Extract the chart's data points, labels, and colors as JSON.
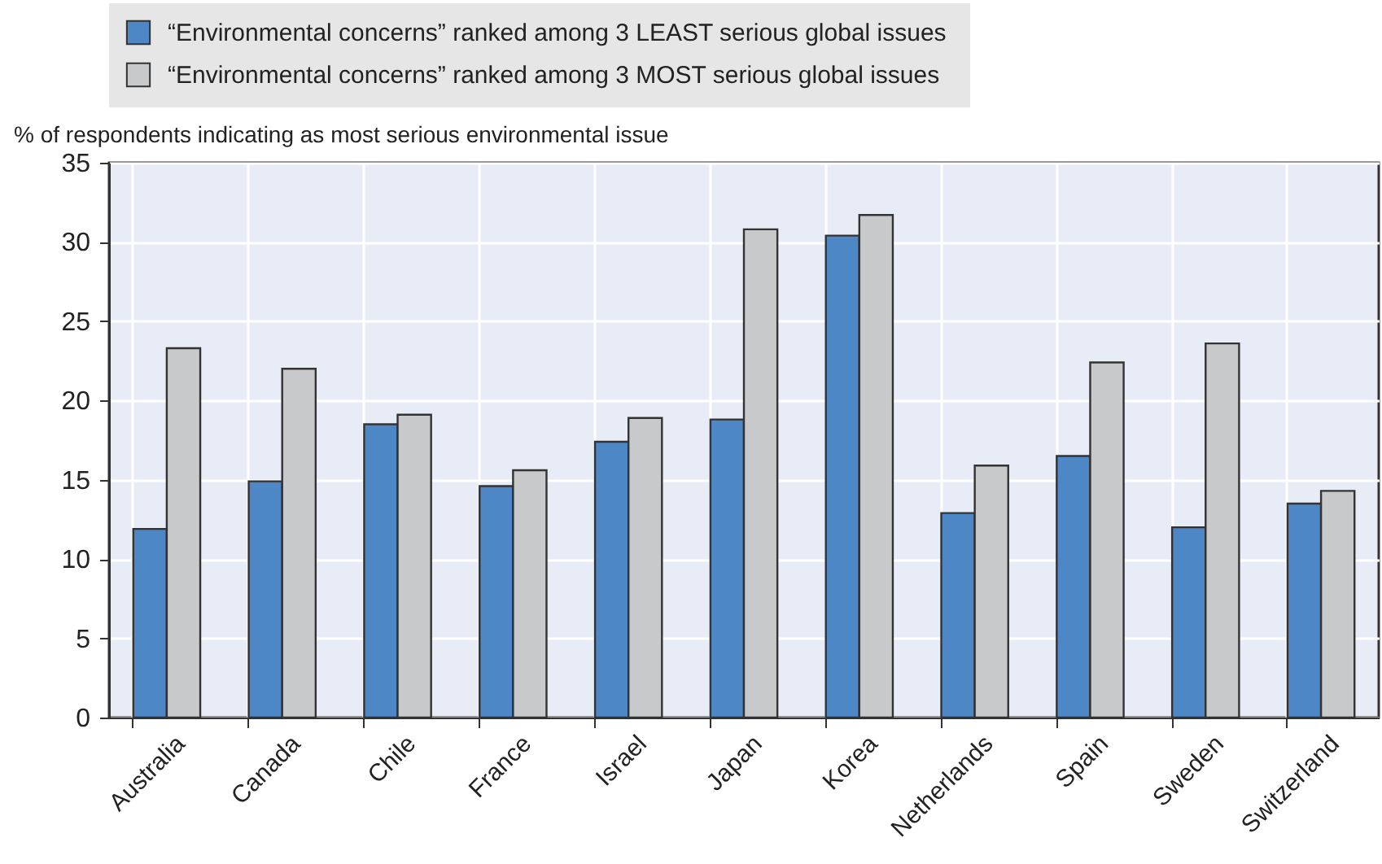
{
  "chart_data": {
    "type": "bar",
    "ylabel": "% of respondents indicating as most serious environmental issue",
    "categories": [
      "Australia",
      "Canada",
      "Chile",
      "France",
      "Israel",
      "Japan",
      "Korea",
      "Netherlands",
      "Spain",
      "Sweden",
      "Switzerland"
    ],
    "series": [
      {
        "name": "“Environmental concerns” ranked among  3 LEAST serious global issues",
        "color": "#4e87c5",
        "values": [
          11.9,
          14.9,
          18.5,
          14.6,
          17.4,
          18.8,
          30.4,
          12.9,
          16.5,
          12.0,
          13.5
        ]
      },
      {
        "name": "“Environmental concerns” ranked among 3 MOST serious global issues",
        "color": "#c8c9cb",
        "values": [
          23.3,
          22.0,
          19.1,
          15.6,
          18.9,
          30.8,
          31.7,
          15.9,
          22.4,
          23.6,
          14.3
        ]
      }
    ],
    "ylim": [
      0,
      35
    ],
    "yticks": [
      0,
      5,
      10,
      15,
      20,
      25,
      30,
      35
    ],
    "grid": true,
    "legend": "top"
  }
}
